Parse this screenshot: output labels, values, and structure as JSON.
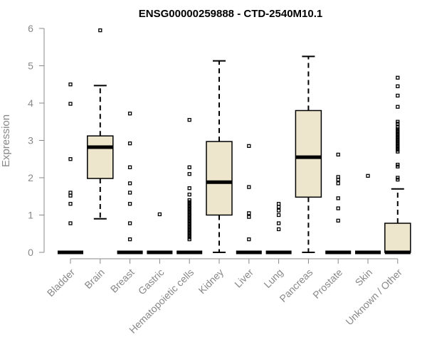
{
  "chart_data": {
    "type": "boxplot",
    "title": "ENSG00000259888 - CTD-2540M10.1",
    "ylabel": "Expression",
    "xlabel": "",
    "ylim": [
      0,
      6
    ],
    "yticks": [
      0,
      1,
      2,
      3,
      4,
      5,
      6
    ],
    "grid": false,
    "box_fill": "#EDE6CC",
    "categories": [
      "Bladder",
      "Brain",
      "Breast",
      "Gastric",
      "Hematopoietic cells",
      "Kidney",
      "Liver",
      "Lung",
      "Pancreas",
      "Prostate",
      "Skin",
      "Unknown / Other"
    ],
    "boxes": [
      {
        "min": 0,
        "q1": 0,
        "median": 0,
        "q3": 0,
        "max": 0,
        "outliers": [
          0.78,
          1.3,
          1.52,
          1.6,
          2.5,
          3.98,
          4.5
        ]
      },
      {
        "min": 0.9,
        "q1": 1.98,
        "median": 2.82,
        "q3": 3.12,
        "max": 4.47,
        "outliers": [
          5.95
        ]
      },
      {
        "min": 0,
        "q1": 0,
        "median": 0,
        "q3": 0,
        "max": 0,
        "outliers": [
          0.35,
          0.78,
          1.3,
          1.6,
          1.85,
          2.28,
          2.92,
          3.72
        ]
      },
      {
        "min": 0,
        "q1": 0,
        "median": 0,
        "q3": 0,
        "max": 0,
        "outliers": [
          1.02
        ]
      },
      {
        "min": 0,
        "q1": 0,
        "median": 0,
        "q3": 0,
        "max": 0,
        "outliers": [
          0.35,
          0.4,
          0.45,
          0.5,
          0.55,
          0.6,
          0.65,
          0.7,
          0.75,
          0.8,
          0.85,
          0.9,
          0.95,
          1.0,
          1.05,
          1.1,
          1.15,
          1.2,
          1.25,
          1.3,
          1.35,
          1.4,
          1.55,
          1.72,
          2.1,
          2.28,
          3.55
        ]
      },
      {
        "min": 0,
        "q1": 1.0,
        "median": 1.88,
        "q3": 2.97,
        "max": 5.13,
        "outliers": []
      },
      {
        "min": 0,
        "q1": 0,
        "median": 0,
        "q3": 0,
        "max": 0,
        "outliers": [
          0.35,
          0.95,
          1.05,
          1.75,
          2.85
        ]
      },
      {
        "min": 0,
        "q1": 0,
        "median": 0,
        "q3": 0,
        "max": 0,
        "outliers": [
          0.62,
          0.78,
          1.0,
          1.12,
          1.22,
          1.3
        ]
      },
      {
        "min": 0,
        "q1": 1.48,
        "median": 2.55,
        "q3": 3.8,
        "max": 5.25,
        "outliers": []
      },
      {
        "min": 0,
        "q1": 0,
        "median": 0,
        "q3": 0,
        "max": 0,
        "outliers": [
          0.85,
          1.18,
          1.45,
          1.85,
          1.95,
          2.02,
          2.62
        ]
      },
      {
        "min": 0,
        "q1": 0,
        "median": 0,
        "q3": 0,
        "max": 0,
        "outliers": [
          2.05
        ]
      },
      {
        "min": 0,
        "q1": 0,
        "median": 0,
        "q3": 0.78,
        "max": 1.7,
        "outliers": [
          1.95,
          2.0,
          2.3,
          2.35,
          2.7,
          2.75,
          2.8,
          2.85,
          2.9,
          2.95,
          3.0,
          3.05,
          3.1,
          3.15,
          3.2,
          3.25,
          3.3,
          3.35,
          3.45,
          3.5,
          3.9,
          4.2,
          4.45,
          4.68
        ]
      }
    ]
  }
}
